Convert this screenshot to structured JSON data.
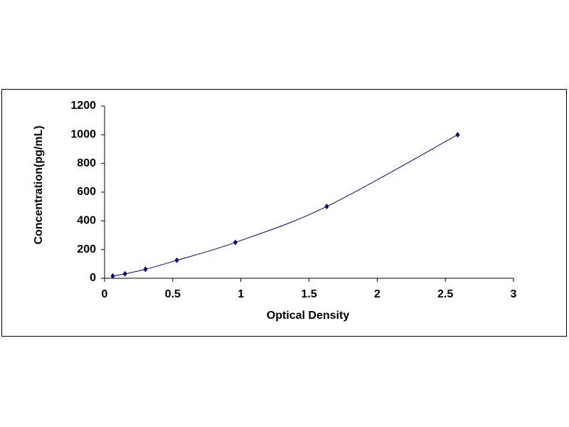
{
  "chart_data": {
    "type": "scatter",
    "x_label": "Optical Density",
    "y_label": "Concentration(pg/mL)",
    "series": [
      {
        "x": [
          0.06,
          0.15,
          0.3,
          0.53,
          0.96,
          1.63,
          2.59
        ],
        "values": [
          15.6,
          31.2,
          62.5,
          125,
          250,
          500,
          1000
        ],
        "color": "#000080"
      }
    ],
    "xlim": [
      0,
      3
    ],
    "xticks": [
      0,
      0.5,
      1,
      1.5,
      2,
      2.5,
      3
    ],
    "ylim": [
      0,
      1200
    ],
    "yticks": [
      0,
      200,
      400,
      600,
      800,
      1000,
      1200
    ],
    "grid": false,
    "trendline": true
  }
}
